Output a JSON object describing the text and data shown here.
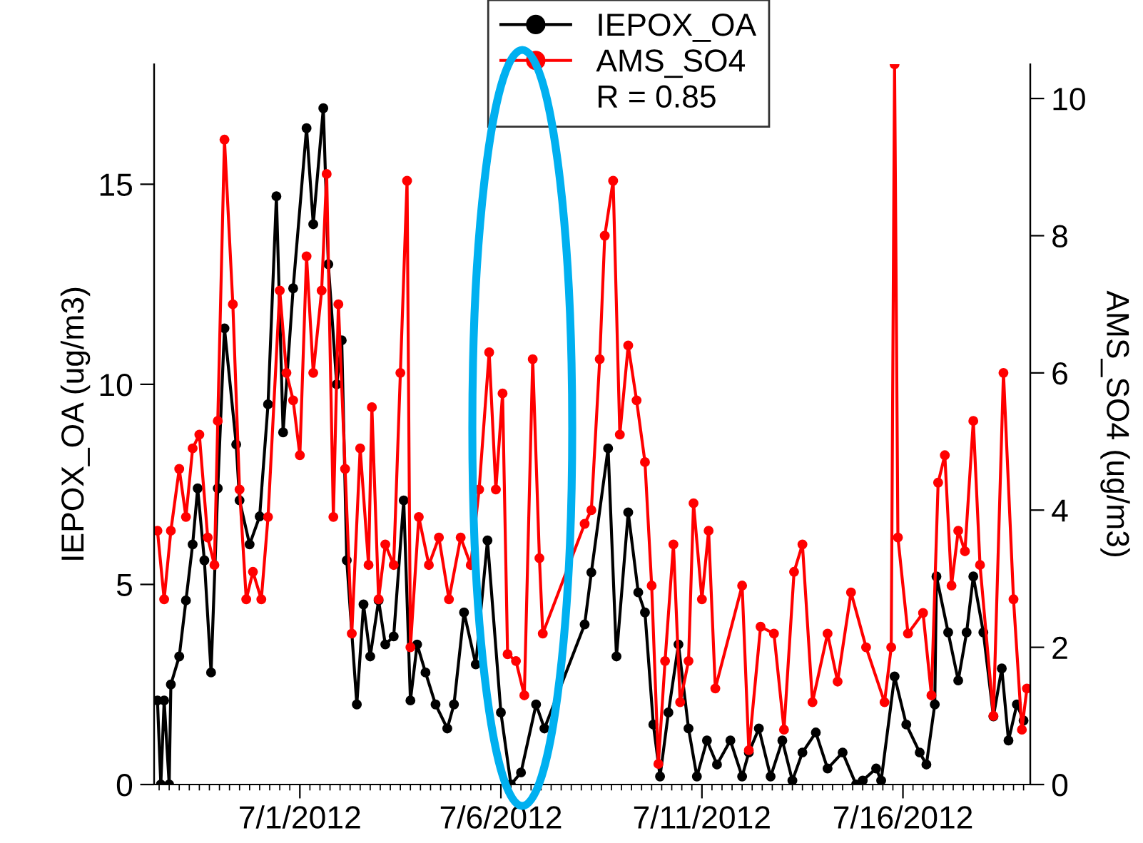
{
  "chart_data": {
    "type": "line",
    "ylabel": "IEPOX_OA (ug/m3)",
    "y2label": "AMS_SO4 (ug/m3)",
    "legend": "top",
    "marker": "circle",
    "line_style": "solid",
    "grid": false,
    "xlim": [
      "2012-06-27T09:00",
      "2012-07-19T04:00"
    ],
    "xticks": [
      {
        "value": "2012-07-01",
        "label": "7/1/2012"
      },
      {
        "value": "2012-07-06",
        "label": "7/6/2012"
      },
      {
        "value": "2012-07-11",
        "label": "7/11/2012"
      },
      {
        "value": "2012-07-16",
        "label": "7/16/2012"
      }
    ],
    "ylim": [
      0,
      18
    ],
    "yticks": [
      0,
      5,
      10,
      15
    ],
    "y2lim": [
      0,
      10.5
    ],
    "y2ticks": [
      0,
      2,
      4,
      6,
      8,
      10
    ],
    "annotations": [
      "R = 0.85"
    ],
    "series": [
      {
        "name": "IEPOX_OA",
        "color": "#000000",
        "x": [
          "2012-06-27T11:00",
          "2012-06-27T13:00",
          "2012-06-27T15:00",
          "2012-06-27T18:00",
          "2012-06-27T19:00",
          "2012-06-28T00:00",
          "2012-06-28T04:00",
          "2012-06-28T08:00",
          "2012-06-28T11:00",
          "2012-06-28T15:00",
          "2012-06-28T19:00",
          "2012-06-28T23:00",
          "2012-06-29T03:00",
          "2012-06-29T10:00",
          "2012-06-29T12:00",
          "2012-06-29T18:00",
          "2012-06-30T00:00",
          "2012-06-30T05:00",
          "2012-06-30T10:00",
          "2012-06-30T14:00",
          "2012-06-30T20:00",
          "2012-07-01T04:00",
          "2012-07-01T08:00",
          "2012-07-01T14:00",
          "2012-07-01T17:00",
          "2012-07-01T22:00",
          "2012-07-02T01:00",
          "2012-07-02T04:00",
          "2012-07-02T10:00",
          "2012-07-02T14:00",
          "2012-07-02T18:00",
          "2012-07-02T23:00",
          "2012-07-03T03:00",
          "2012-07-03T08:00",
          "2012-07-03T14:00",
          "2012-07-03T18:00",
          "2012-07-03T22:00",
          "2012-07-04T03:00",
          "2012-07-04T09:00",
          "2012-07-04T16:00",
          "2012-07-04T20:00",
          "2012-07-05T02:00",
          "2012-07-05T09:00",
          "2012-07-05T16:00",
          "2012-07-06T00:00",
          "2012-07-06T06:00",
          "2012-07-06T12:00",
          "2012-07-06T21:00",
          "2012-07-07T02:00",
          "2012-07-08T02:00",
          "2012-07-08T06:00",
          "2012-07-08T16:00",
          "2012-07-08T21:00",
          "2012-07-09T04:00",
          "2012-07-09T10:00",
          "2012-07-09T14:00",
          "2012-07-09T19:00",
          "2012-07-09T23:00",
          "2012-07-10T04:00",
          "2012-07-10T10:00",
          "2012-07-10T16:00",
          "2012-07-10T21:00",
          "2012-07-11T03:00",
          "2012-07-11T09:00",
          "2012-07-11T17:00",
          "2012-07-12T00:00",
          "2012-07-12T04:00",
          "2012-07-12T10:00",
          "2012-07-12T17:00",
          "2012-07-13T00:00",
          "2012-07-13T06:00",
          "2012-07-13T12:00",
          "2012-07-13T20:00",
          "2012-07-14T03:00",
          "2012-07-14T12:00",
          "2012-07-14T20:00",
          "2012-07-15T00:00",
          "2012-07-15T08:00",
          "2012-07-15T11:00",
          "2012-07-15T19:00",
          "2012-07-16T02:00",
          "2012-07-16T10:00",
          "2012-07-16T14:00",
          "2012-07-16T19:00",
          "2012-07-16T20:00",
          "2012-07-17T03:00",
          "2012-07-17T09:00",
          "2012-07-17T14:00",
          "2012-07-17T18:00",
          "2012-07-18T00:00",
          "2012-07-18T06:00",
          "2012-07-18T11:00",
          "2012-07-18T15:00",
          "2012-07-18T20:00",
          "2012-07-19T00:00"
        ],
        "values": [
          2.1,
          0,
          2.1,
          0,
          2.5,
          3.2,
          4.6,
          6.0,
          7.4,
          5.6,
          2.8,
          7.4,
          11.4,
          8.5,
          7.1,
          6.0,
          6.7,
          9.5,
          14.7,
          8.8,
          12.4,
          16.4,
          14.0,
          16.9,
          13.0,
          10.0,
          11.1,
          5.6,
          2.0,
          4.5,
          3.2,
          4.6,
          3.5,
          3.7,
          7.1,
          2.1,
          3.5,
          2.8,
          2.0,
          1.4,
          2.0,
          4.3,
          3.0,
          6.1,
          1.8,
          0.0,
          0.3,
          2.0,
          1.4,
          4.0,
          5.3,
          8.4,
          3.2,
          6.8,
          4.8,
          4.3,
          1.5,
          0.2,
          1.8,
          3.5,
          1.4,
          0.2,
          1.1,
          0.5,
          1.1,
          0.2,
          0.8,
          1.4,
          0.2,
          1.1,
          0.1,
          0.8,
          1.3,
          0.4,
          0.8,
          0.0,
          0.1,
          0.4,
          0.1,
          2.7,
          1.5,
          0.8,
          0.5,
          2.0,
          5.2,
          3.8,
          2.6,
          3.8,
          5.2,
          3.8,
          1.7,
          2.9,
          1.1,
          2.0,
          1.6
        ]
      },
      {
        "name": "AMS_SO4",
        "color": "#ff0000",
        "axis": "y2",
        "x": [
          "2012-06-27T11:00",
          "2012-06-27T15:00",
          "2012-06-27T19:00",
          "2012-06-28T00:00",
          "2012-06-28T04:00",
          "2012-06-28T08:00",
          "2012-06-28T12:00",
          "2012-06-28T17:00",
          "2012-06-28T21:00",
          "2012-06-28T23:00",
          "2012-06-29T03:00",
          "2012-06-29T08:00",
          "2012-06-29T12:00",
          "2012-06-29T16:00",
          "2012-06-29T20:00",
          "2012-06-30T01:00",
          "2012-06-30T05:00",
          "2012-06-30T12:00",
          "2012-06-30T16:00",
          "2012-06-30T20:00",
          "2012-07-01T00:00",
          "2012-07-01T04:00",
          "2012-07-01T08:00",
          "2012-07-01T13:00",
          "2012-07-01T16:00",
          "2012-07-01T20:00",
          "2012-07-01T23:00",
          "2012-07-02T03:00",
          "2012-07-02T07:00",
          "2012-07-02T12:00",
          "2012-07-02T17:00",
          "2012-07-02T19:00",
          "2012-07-02T23:00",
          "2012-07-03T03:00",
          "2012-07-03T08:00",
          "2012-07-03T12:00",
          "2012-07-03T16:00",
          "2012-07-03T18:00",
          "2012-07-03T23:00",
          "2012-07-04T05:00",
          "2012-07-04T11:00",
          "2012-07-04T17:00",
          "2012-07-05T00:00",
          "2012-07-05T06:00",
          "2012-07-05T11:00",
          "2012-07-05T17:00",
          "2012-07-05T21:00",
          "2012-07-06T01:00",
          "2012-07-06T04:00",
          "2012-07-06T09:00",
          "2012-07-06T14:00",
          "2012-07-06T19:00",
          "2012-07-06T23:00",
          "2012-07-07T01:00",
          "2012-07-08T02:00",
          "2012-07-08T06:00",
          "2012-07-08T11:00",
          "2012-07-08T14:00",
          "2012-07-08T19:00",
          "2012-07-08T23:00",
          "2012-07-09T04:00",
          "2012-07-09T09:00",
          "2012-07-09T14:00",
          "2012-07-09T18:00",
          "2012-07-09T22:00",
          "2012-07-10T02:00",
          "2012-07-10T07:00",
          "2012-07-10T11:00",
          "2012-07-10T16:00",
          "2012-07-10T19:00",
          "2012-07-11T00:00",
          "2012-07-11T04:00",
          "2012-07-11T08:00",
          "2012-07-12T00:00",
          "2012-07-12T04:00",
          "2012-07-12T11:00",
          "2012-07-12T19:00",
          "2012-07-13T01:00",
          "2012-07-13T07:00",
          "2012-07-13T12:00",
          "2012-07-13T18:00",
          "2012-07-14T03:00",
          "2012-07-14T09:00",
          "2012-07-14T17:00",
          "2012-07-15T02:00",
          "2012-07-15T13:00",
          "2012-07-15T17:00",
          "2012-07-15T19:00",
          "2012-07-15T21:00",
          "2012-07-16T03:00",
          "2012-07-16T12:00",
          "2012-07-16T17:00",
          "2012-07-16T21:00",
          "2012-07-17T01:00",
          "2012-07-17T05:00",
          "2012-07-17T09:00",
          "2012-07-17T13:00",
          "2012-07-17T18:00",
          "2012-07-17T22:00",
          "2012-07-18T06:00",
          "2012-07-18T12:00",
          "2012-07-18T18:00",
          "2012-07-18T23:00",
          "2012-07-19T02:00"
        ],
        "values": [
          3.7,
          2.7,
          3.7,
          4.6,
          3.9,
          4.9,
          5.1,
          3.6,
          3.2,
          5.3,
          9.4,
          7.0,
          4.3,
          2.7,
          3.1,
          2.7,
          3.9,
          7.2,
          6.0,
          5.6,
          4.8,
          7.7,
          6.0,
          7.2,
          8.9,
          3.9,
          7.0,
          4.6,
          2.2,
          4.9,
          3.2,
          5.5,
          2.7,
          3.5,
          3.2,
          6.0,
          8.8,
          2.0,
          3.9,
          3.2,
          3.6,
          2.7,
          3.6,
          3.2,
          4.3,
          6.3,
          4.3,
          5.7,
          1.9,
          1.8,
          1.3,
          6.2,
          3.3,
          2.2,
          3.8,
          4.0,
          6.2,
          8.0,
          8.8,
          5.1,
          6.4,
          5.6,
          4.7,
          2.9,
          0.3,
          1.8,
          3.5,
          1.2,
          1.8,
          4.1,
          2.7,
          3.7,
          1.4,
          2.9,
          0.5,
          2.3,
          2.2,
          0.8,
          3.1,
          3.5,
          1.2,
          2.2,
          1.5,
          2.8,
          2.0,
          1.2,
          2.0,
          10.5,
          3.6,
          2.2,
          2.5,
          1.3,
          4.4,
          4.8,
          2.9,
          3.7,
          3.4,
          5.3,
          3.2,
          1.0,
          6.0,
          2.7,
          0.8,
          1.4
        ]
      }
    ]
  }
}
